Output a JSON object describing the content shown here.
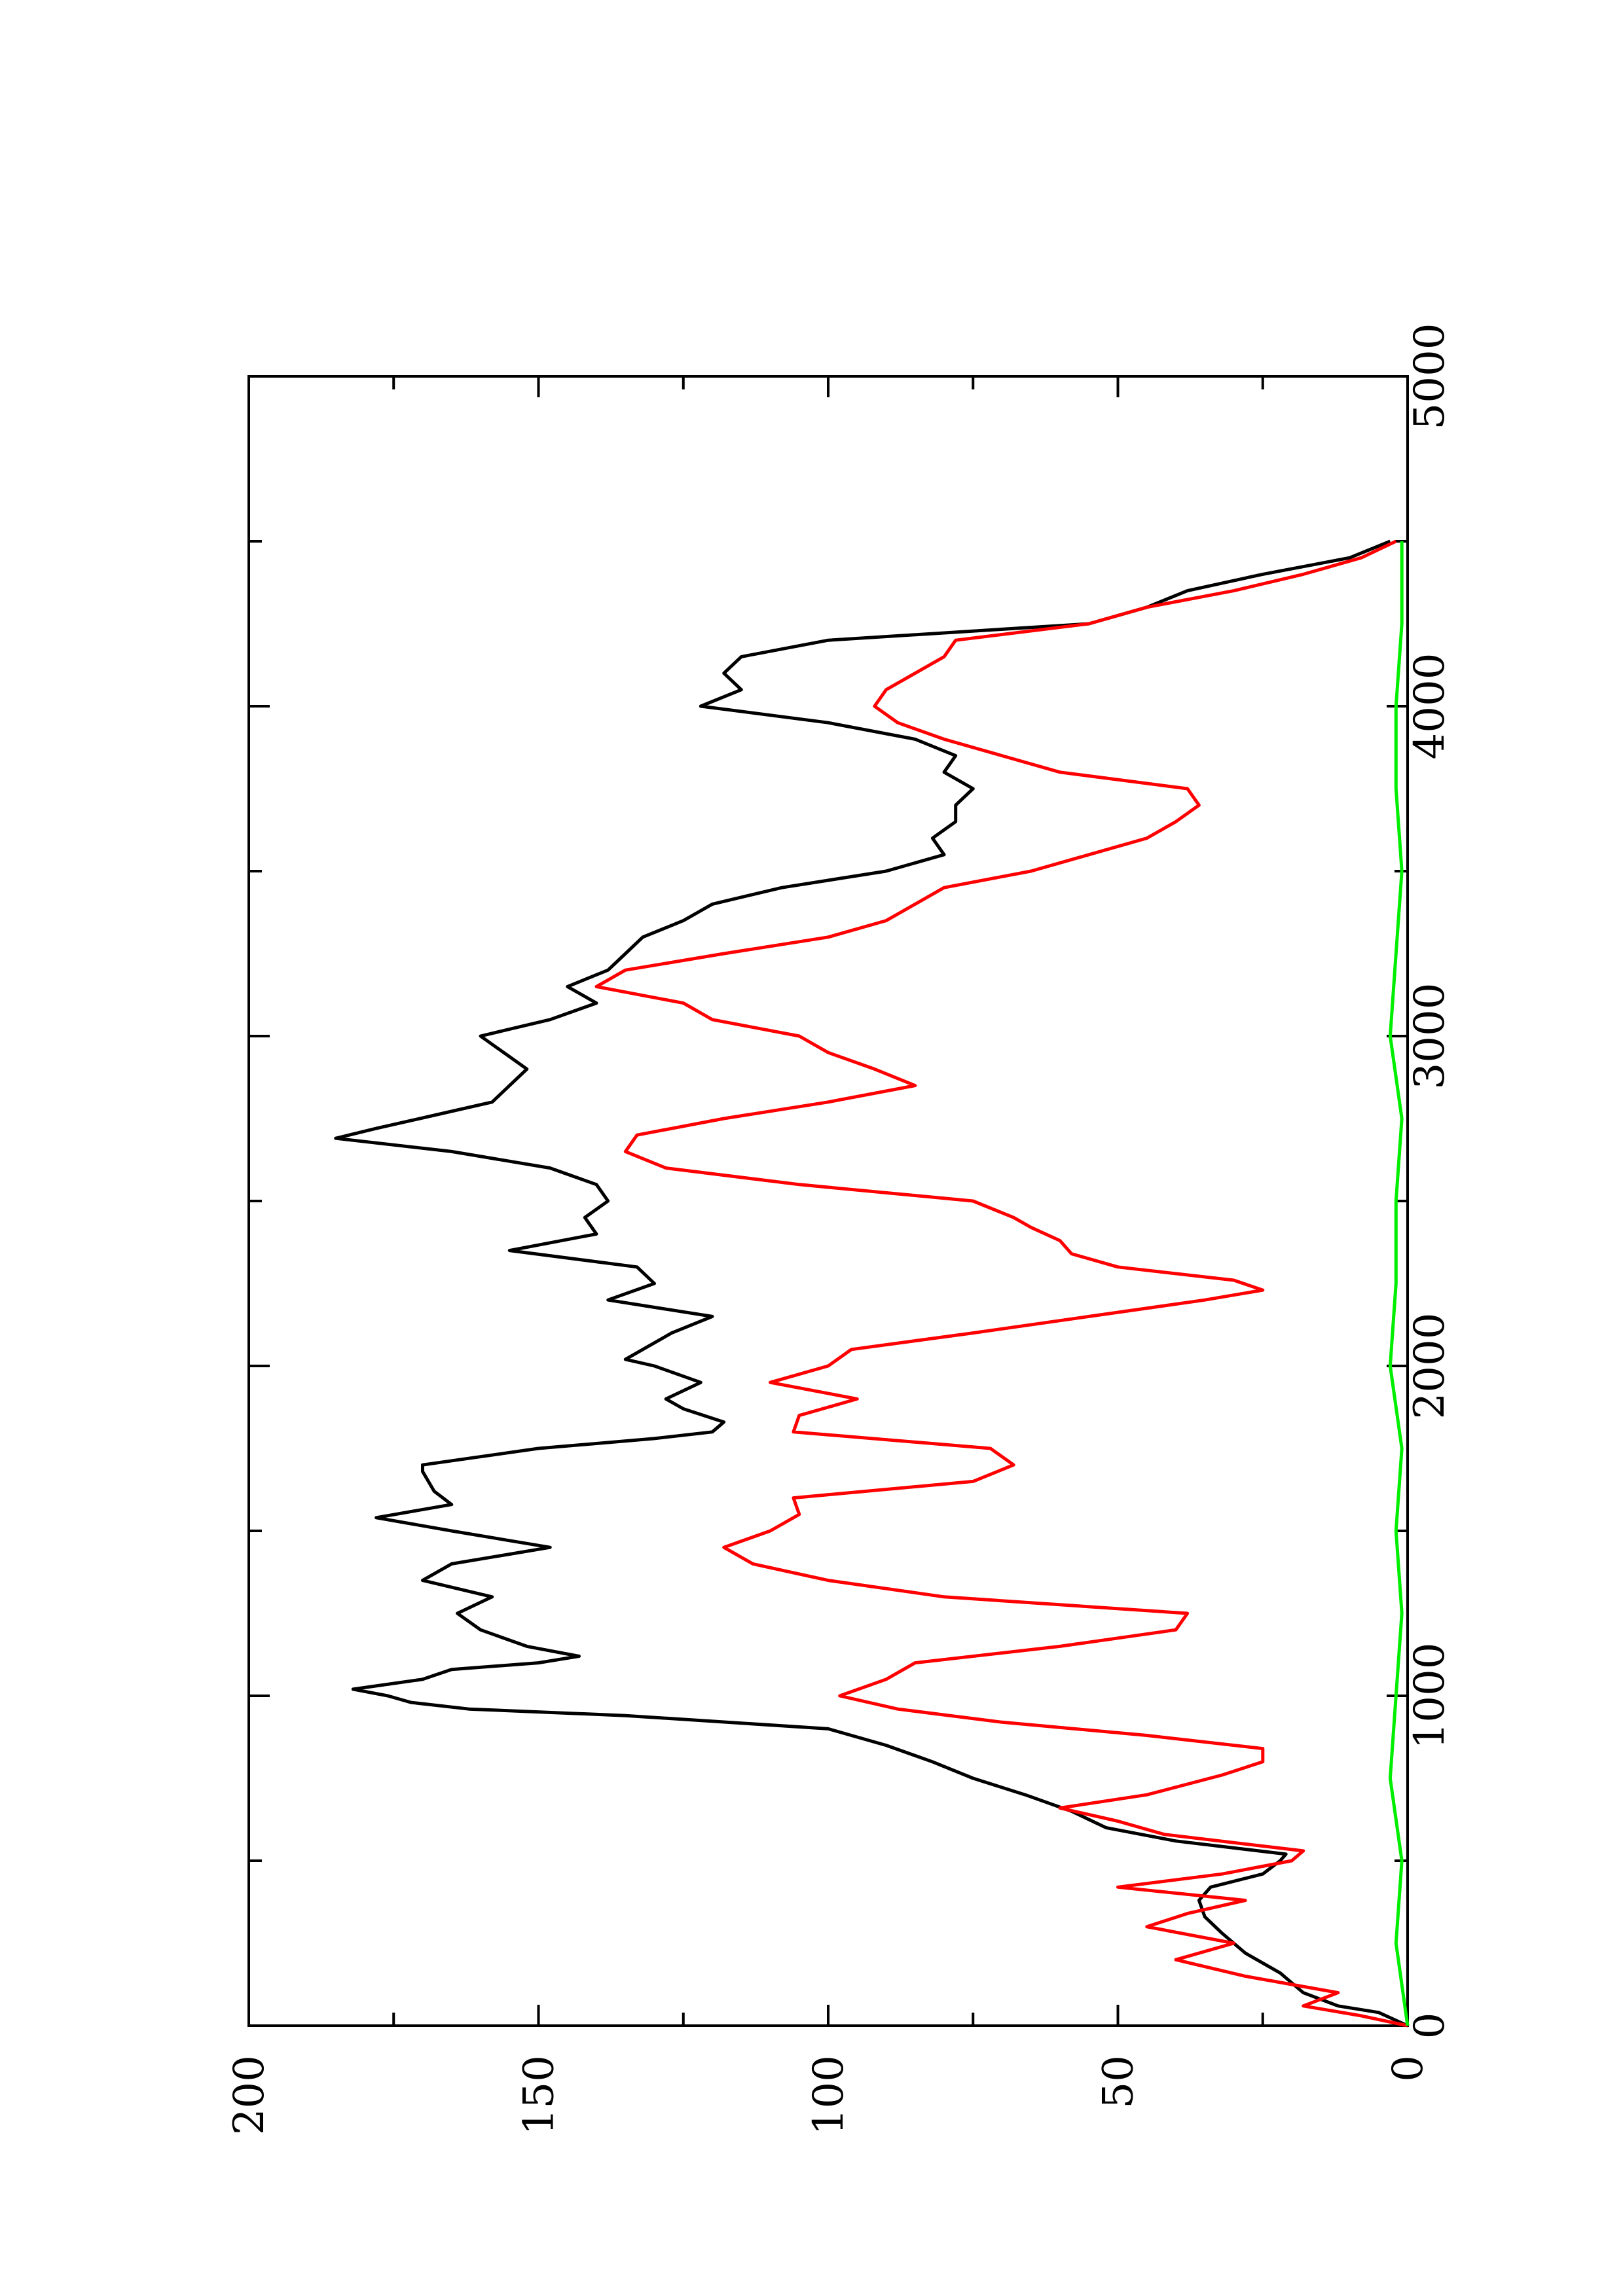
{
  "chart_data": {
    "type": "line",
    "orientation": "rotated-90-ccw",
    "xlim": [
      0,
      5000
    ],
    "ylim": [
      0,
      200
    ],
    "x_ticks": [
      0,
      1000,
      2000,
      3000,
      4000,
      5000
    ],
    "x_tick_labels": [
      "0",
      "1000",
      "2000",
      "3000",
      "4000",
      "5000"
    ],
    "y_ticks": [
      0,
      50,
      100,
      150,
      200
    ],
    "y_tick_labels": [
      "0",
      "50",
      "100",
      "150",
      "200"
    ],
    "grid": false,
    "series": [
      {
        "color": "#000000",
        "points": [
          [
            0,
            0
          ],
          [
            40,
            5
          ],
          [
            60,
            12
          ],
          [
            100,
            18
          ],
          [
            160,
            22
          ],
          [
            220,
            28
          ],
          [
            280,
            32
          ],
          [
            330,
            35
          ],
          [
            380,
            36
          ],
          [
            420,
            34
          ],
          [
            460,
            25
          ],
          [
            500,
            22
          ],
          [
            520,
            21
          ],
          [
            560,
            40
          ],
          [
            600,
            52
          ],
          [
            650,
            58
          ],
          [
            700,
            66
          ],
          [
            750,
            75
          ],
          [
            800,
            82
          ],
          [
            850,
            90
          ],
          [
            900,
            100
          ],
          [
            940,
            135
          ],
          [
            960,
            162
          ],
          [
            980,
            172
          ],
          [
            1000,
            176
          ],
          [
            1020,
            182
          ],
          [
            1050,
            170
          ],
          [
            1080,
            165
          ],
          [
            1100,
            150
          ],
          [
            1120,
            143
          ],
          [
            1150,
            152
          ],
          [
            1200,
            160
          ],
          [
            1250,
            164
          ],
          [
            1300,
            158
          ],
          [
            1350,
            170
          ],
          [
            1400,
            165
          ],
          [
            1450,
            148
          ],
          [
            1500,
            165
          ],
          [
            1540,
            178
          ],
          [
            1580,
            165
          ],
          [
            1620,
            168
          ],
          [
            1680,
            170
          ],
          [
            1700,
            170
          ],
          [
            1750,
            150
          ],
          [
            1780,
            130
          ],
          [
            1800,
            120
          ],
          [
            1830,
            118
          ],
          [
            1870,
            125
          ],
          [
            1900,
            128
          ],
          [
            1950,
            122
          ],
          [
            2000,
            130
          ],
          [
            2020,
            135
          ],
          [
            2050,
            132
          ],
          [
            2100,
            127
          ],
          [
            2150,
            120
          ],
          [
            2200,
            138
          ],
          [
            2250,
            130
          ],
          [
            2300,
            133
          ],
          [
            2350,
            155
          ],
          [
            2400,
            140
          ],
          [
            2450,
            142
          ],
          [
            2500,
            138
          ],
          [
            2550,
            140
          ],
          [
            2600,
            148
          ],
          [
            2650,
            165
          ],
          [
            2690,
            185
          ],
          [
            2720,
            178
          ],
          [
            2760,
            168
          ],
          [
            2800,
            158
          ],
          [
            2850,
            155
          ],
          [
            2900,
            152
          ],
          [
            2950,
            156
          ],
          [
            3000,
            160
          ],
          [
            3050,
            148
          ],
          [
            3100,
            140
          ],
          [
            3150,
            145
          ],
          [
            3200,
            138
          ],
          [
            3250,
            135
          ],
          [
            3300,
            132
          ],
          [
            3350,
            125
          ],
          [
            3400,
            120
          ],
          [
            3450,
            108
          ],
          [
            3500,
            90
          ],
          [
            3550,
            80
          ],
          [
            3600,
            82
          ],
          [
            3650,
            78
          ],
          [
            3700,
            78
          ],
          [
            3750,
            75
          ],
          [
            3800,
            80
          ],
          [
            3850,
            78
          ],
          [
            3900,
            85
          ],
          [
            3950,
            100
          ],
          [
            4000,
            122
          ],
          [
            4050,
            115
          ],
          [
            4100,
            118
          ],
          [
            4150,
            115
          ],
          [
            4200,
            100
          ],
          [
            4250,
            55
          ],
          [
            4300,
            45
          ],
          [
            4350,
            38
          ],
          [
            4400,
            25
          ],
          [
            4450,
            10
          ],
          [
            4500,
            3
          ]
        ]
      },
      {
        "color": "#ff0000",
        "points": [
          [
            0,
            0
          ],
          [
            30,
            8
          ],
          [
            60,
            18
          ],
          [
            100,
            12
          ],
          [
            150,
            28
          ],
          [
            200,
            40
          ],
          [
            250,
            30
          ],
          [
            300,
            45
          ],
          [
            340,
            38
          ],
          [
            380,
            28
          ],
          [
            420,
            50
          ],
          [
            460,
            32
          ],
          [
            500,
            20
          ],
          [
            530,
            18
          ],
          [
            580,
            42
          ],
          [
            620,
            50
          ],
          [
            660,
            60
          ],
          [
            700,
            45
          ],
          [
            760,
            32
          ],
          [
            800,
            25
          ],
          [
            840,
            25
          ],
          [
            880,
            45
          ],
          [
            920,
            70
          ],
          [
            960,
            88
          ],
          [
            1000,
            98
          ],
          [
            1050,
            90
          ],
          [
            1100,
            85
          ],
          [
            1150,
            60
          ],
          [
            1200,
            40
          ],
          [
            1250,
            38
          ],
          [
            1300,
            80
          ],
          [
            1350,
            100
          ],
          [
            1400,
            113
          ],
          [
            1450,
            118
          ],
          [
            1500,
            110
          ],
          [
            1550,
            105
          ],
          [
            1600,
            106
          ],
          [
            1650,
            75
          ],
          [
            1700,
            68
          ],
          [
            1750,
            72
          ],
          [
            1800,
            106
          ],
          [
            1850,
            105
          ],
          [
            1900,
            95
          ],
          [
            1950,
            110
          ],
          [
            2000,
            100
          ],
          [
            2050,
            96
          ],
          [
            2100,
            75
          ],
          [
            2150,
            55
          ],
          [
            2200,
            35
          ],
          [
            2230,
            25
          ],
          [
            2260,
            30
          ],
          [
            2300,
            50
          ],
          [
            2340,
            58
          ],
          [
            2380,
            60
          ],
          [
            2420,
            65
          ],
          [
            2450,
            68
          ],
          [
            2500,
            75
          ],
          [
            2550,
            105
          ],
          [
            2600,
            128
          ],
          [
            2650,
            135
          ],
          [
            2700,
            133
          ],
          [
            2750,
            118
          ],
          [
            2800,
            100
          ],
          [
            2850,
            85
          ],
          [
            2900,
            92
          ],
          [
            2950,
            100
          ],
          [
            3000,
            105
          ],
          [
            3050,
            120
          ],
          [
            3100,
            125
          ],
          [
            3150,
            140
          ],
          [
            3200,
            135
          ],
          [
            3250,
            118
          ],
          [
            3300,
            100
          ],
          [
            3350,
            90
          ],
          [
            3400,
            85
          ],
          [
            3450,
            80
          ],
          [
            3500,
            65
          ],
          [
            3550,
            55
          ],
          [
            3600,
            45
          ],
          [
            3650,
            40
          ],
          [
            3700,
            36
          ],
          [
            3750,
            38
          ],
          [
            3800,
            60
          ],
          [
            3850,
            70
          ],
          [
            3900,
            80
          ],
          [
            3950,
            88
          ],
          [
            4000,
            92
          ],
          [
            4050,
            90
          ],
          [
            4100,
            85
          ],
          [
            4150,
            80
          ],
          [
            4200,
            78
          ],
          [
            4250,
            55
          ],
          [
            4300,
            45
          ],
          [
            4350,
            30
          ],
          [
            4400,
            18
          ],
          [
            4450,
            8
          ],
          [
            4500,
            2
          ]
        ]
      },
      {
        "color": "#00ee00",
        "points": [
          [
            0,
            0
          ],
          [
            250,
            2
          ],
          [
            500,
            1
          ],
          [
            750,
            3
          ],
          [
            1000,
            2
          ],
          [
            1250,
            1
          ],
          [
            1500,
            2
          ],
          [
            1750,
            1
          ],
          [
            2000,
            3
          ],
          [
            2250,
            2
          ],
          [
            2500,
            2
          ],
          [
            2750,
            1
          ],
          [
            3000,
            3
          ],
          [
            3250,
            2
          ],
          [
            3500,
            1
          ],
          [
            3750,
            2
          ],
          [
            4000,
            2
          ],
          [
            4250,
            1
          ],
          [
            4500,
            1
          ]
        ]
      }
    ]
  }
}
